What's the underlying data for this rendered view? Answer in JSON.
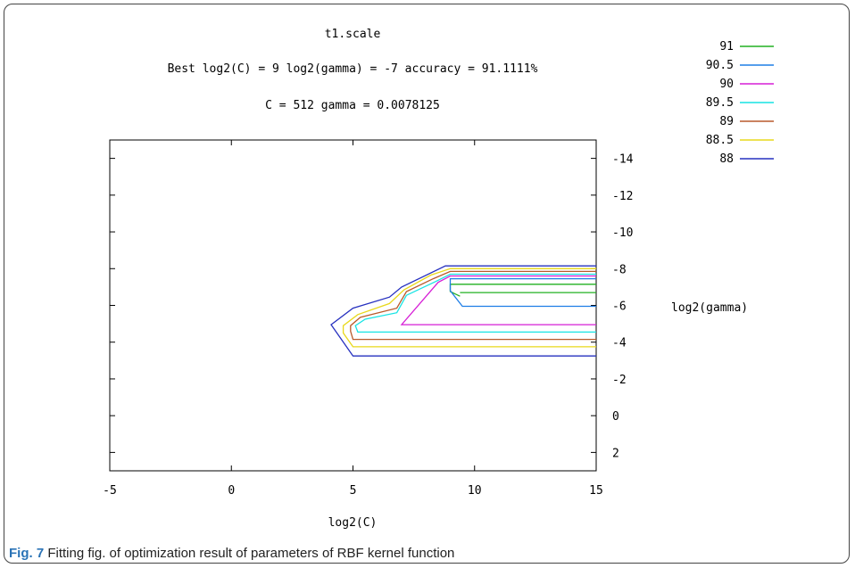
{
  "figure": {
    "caption_label": "Fig. 7",
    "caption_text": "Fitting fig. of optimization result of parameters of RBF kernel function"
  },
  "chart_data": {
    "type": "line",
    "title": "t1.scale",
    "subtitle_line1": "Best log2(C) = 9  log2(gamma) = -7  accuracy = 91.1111%",
    "subtitle_line2": "C = 512  gamma = 0.0078125",
    "xlabel": "log2(C)",
    "ylabel": "log2(gamma)",
    "xlim": [
      -5,
      15
    ],
    "ylim": [
      3,
      -15
    ],
    "x_ticks": [
      -5,
      0,
      5,
      10,
      15
    ],
    "y_ticks": [
      -14,
      -12,
      -10,
      -8,
      -6,
      -4,
      -2,
      0,
      2
    ],
    "grid": false,
    "legend_position": "top-right",
    "series": [
      {
        "name": "91",
        "color": "#22b022",
        "points": [
          [
            9.4,
            -6.5
          ],
          [
            9,
            -6.75
          ],
          [
            9,
            -7.15
          ],
          [
            15,
            -7.15
          ]
        ],
        "points2": [
          [
            15,
            -6.7
          ],
          [
            9.4,
            -6.7
          ]
        ]
      },
      {
        "name": "90.5",
        "color": "#1e7ee6",
        "points": [
          [
            15,
            -5.95
          ],
          [
            9.5,
            -5.95
          ],
          [
            9,
            -6.8
          ],
          [
            9,
            -7.45
          ],
          [
            15,
            -7.45
          ]
        ]
      },
      {
        "name": "90",
        "color": "#d61fd6",
        "points": [
          [
            15,
            -4.95
          ],
          [
            7,
            -4.95
          ],
          [
            8.5,
            -7.25
          ],
          [
            9,
            -7.6
          ],
          [
            15,
            -7.6
          ]
        ]
      },
      {
        "name": "89.5",
        "color": "#17e4e4",
        "points": [
          [
            15,
            -4.55
          ],
          [
            5.2,
            -4.55
          ],
          [
            5.1,
            -4.9
          ],
          [
            5.5,
            -5.25
          ],
          [
            6.8,
            -5.6
          ],
          [
            7.2,
            -6.55
          ],
          [
            8.4,
            -7.3
          ],
          [
            9,
            -7.7
          ],
          [
            15,
            -7.7
          ]
        ]
      },
      {
        "name": "89",
        "color": "#b85a2b",
        "points": [
          [
            15,
            -4.15
          ],
          [
            5,
            -4.15
          ],
          [
            4.9,
            -4.6
          ],
          [
            4.9,
            -4.9
          ],
          [
            5.3,
            -5.35
          ],
          [
            6.8,
            -5.85
          ],
          [
            7.2,
            -6.75
          ],
          [
            8.3,
            -7.45
          ],
          [
            9,
            -7.85
          ],
          [
            15,
            -7.85
          ]
        ]
      },
      {
        "name": "88.5",
        "color": "#e8d81b",
        "points": [
          [
            15,
            -3.75
          ],
          [
            5,
            -3.75
          ],
          [
            4.6,
            -4.5
          ],
          [
            4.6,
            -4.9
          ],
          [
            5.2,
            -5.5
          ],
          [
            6.5,
            -6.1
          ],
          [
            7.1,
            -6.85
          ],
          [
            8.2,
            -7.65
          ],
          [
            9,
            -8.0
          ],
          [
            15,
            -8.0
          ]
        ]
      },
      {
        "name": "88",
        "color": "#2630bf",
        "points": [
          [
            15,
            -3.25
          ],
          [
            5,
            -3.25
          ],
          [
            4.1,
            -4.95
          ],
          [
            5,
            -5.85
          ],
          [
            6.5,
            -6.45
          ],
          [
            7,
            -7.0
          ],
          [
            8.8,
            -8.15
          ],
          [
            15,
            -8.15
          ]
        ]
      }
    ]
  }
}
